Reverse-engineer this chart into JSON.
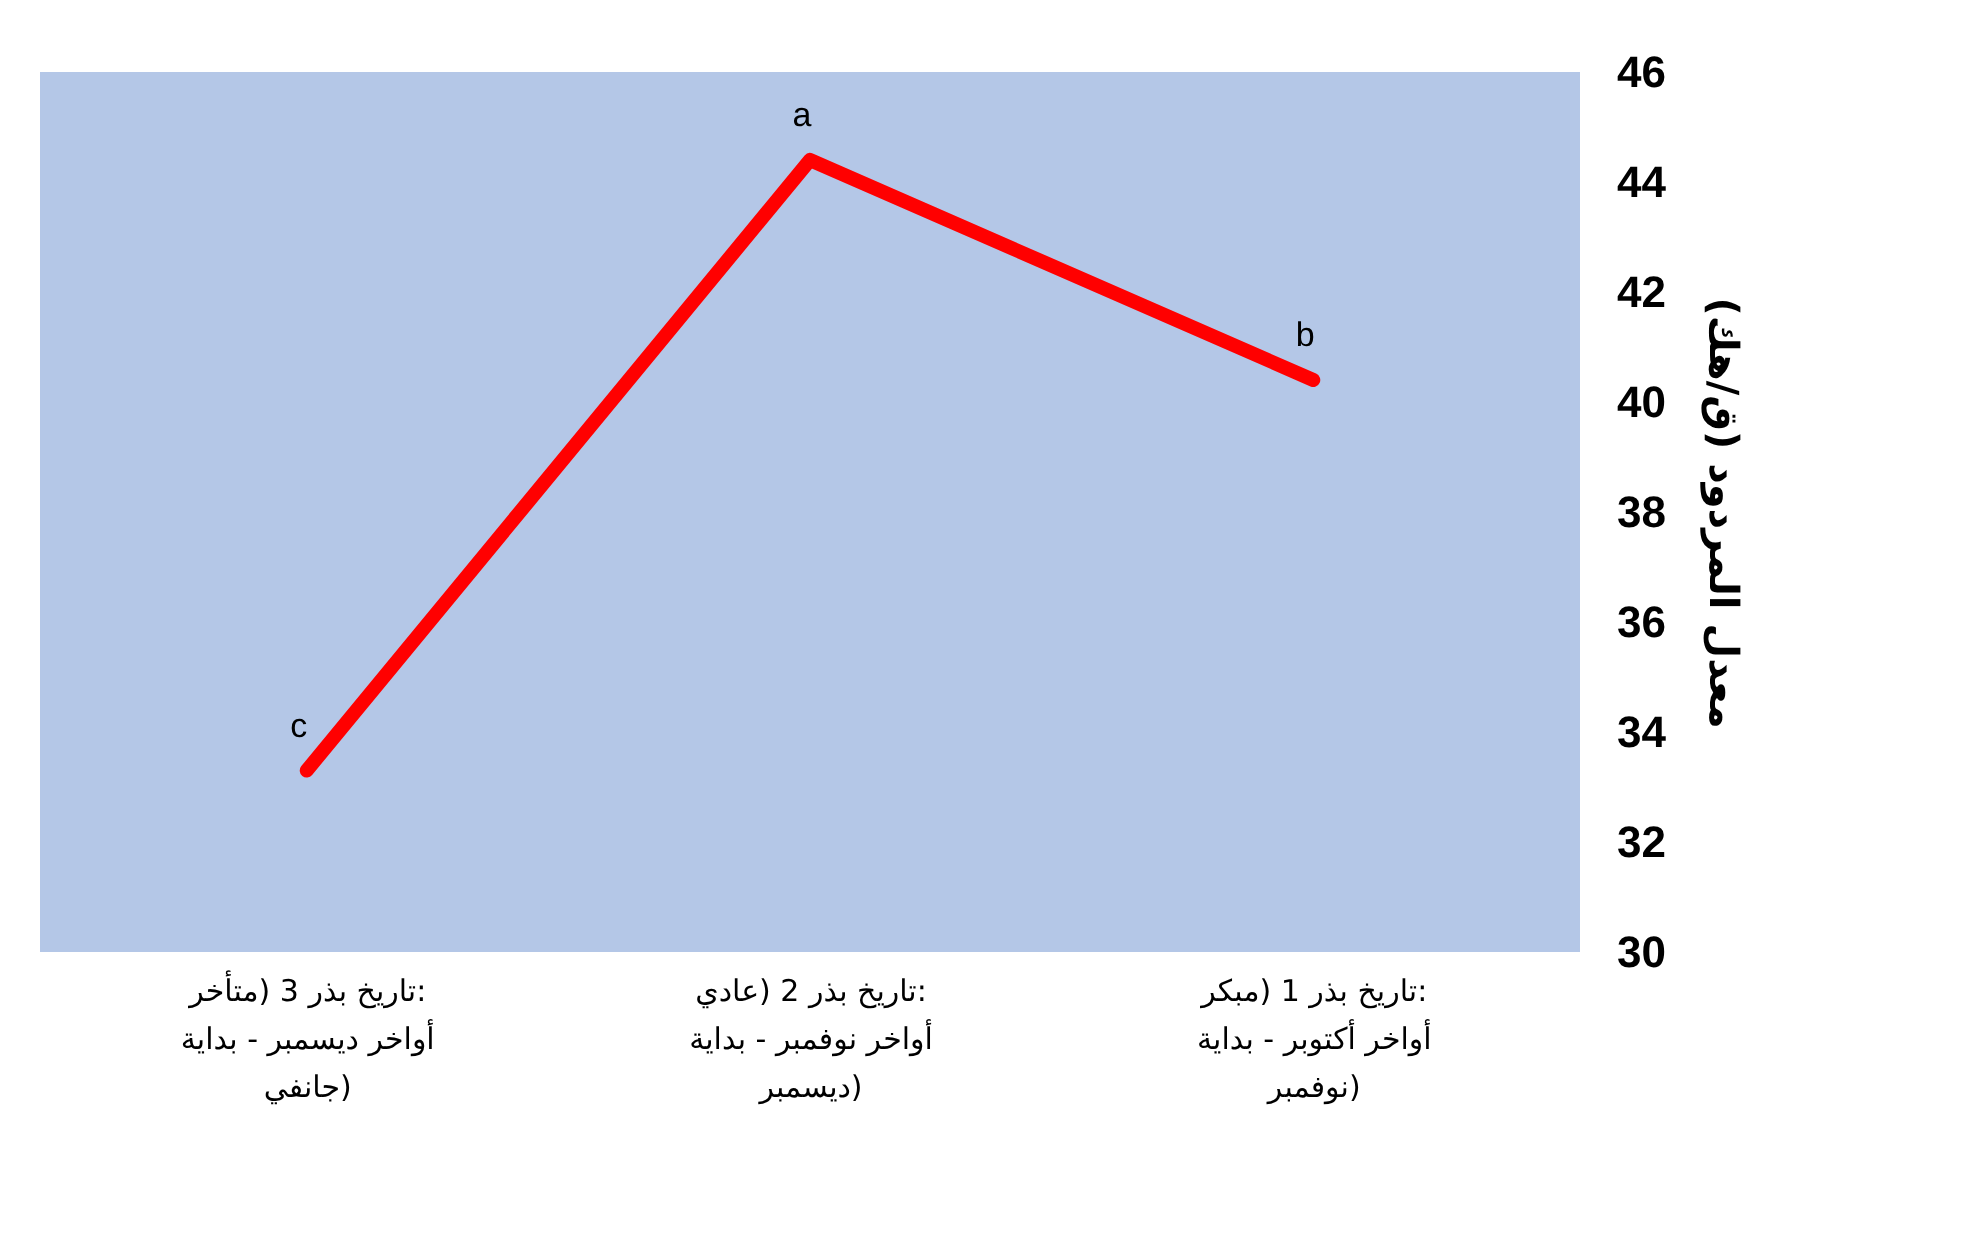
{
  "chart_data": {
    "type": "line",
    "categories": [
      "تاريخ بذر 3 (متأخر:\nأواخر ديسمبر - بداية\nجانفي)",
      "تاريخ بذر 2 (عادي:\nأواخر نوفمبر - بداية\nديسمبر)",
      "تاريخ بذر 1 (مبكر:\nأواخر أكتوبر - بداية\nنوفمبر)"
    ],
    "series": [
      {
        "color": "#ff0000",
        "values": [
          33.3,
          44.4,
          40.4
        ]
      }
    ],
    "ylabel": "معدل المردود (ق/هك)",
    "ylim": [
      30,
      46
    ],
    "yticks": [
      30,
      32,
      34,
      36,
      38,
      40,
      42,
      44,
      46
    ],
    "annotations": [
      {
        "text": "c",
        "x": "تاريخ بذر 3 (متأخر:\nأواخر ديسمبر - بداية\nجانفي)",
        "y": 33.3
      },
      {
        "text": "a",
        "x": "تاريخ بذر 2 (عادي:\nأواخر نوفمبر - بداية\nديسمبر)",
        "y": 44.4
      },
      {
        "text": "b",
        "x": "تاريخ بذر 1 (مبكر:\nأواخر أكتوبر - بداية\nنوفمبر)",
        "y": 40.4
      }
    ],
    "grid": false,
    "marker": "none",
    "line_style": "solid"
  }
}
